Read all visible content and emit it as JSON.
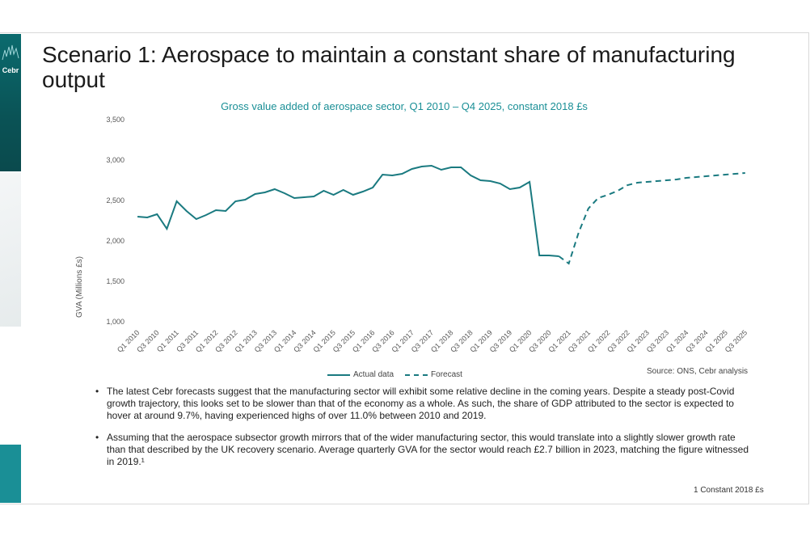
{
  "slide": {
    "title": "Scenario 1: Aerospace to maintain a constant share of manufacturing output",
    "logo_text": "Cebr",
    "source": "Source: ONS, Cebr analysis",
    "footnote": "1 Constant 2018 £s",
    "bullets": [
      "The latest Cebr forecasts suggest that the manufacturing sector will exhibit some relative decline in the coming years. Despite a steady post-Covid growth trajectory, this looks set to be slower than that of the economy as a whole. As such, the share of GDP attributed to the sector is expected to hover at around 9.7%, having experienced highs of over 11.0% between 2010 and 2019.",
      "Assuming that the aerospace subsector growth mirrors that of the wider manufacturing sector, this would translate into a slightly slower growth rate than that described by the UK recovery scenario. Average quarterly GVA for the sector would reach £2.7 billion in 2023, matching the figure witnessed in 2019.¹"
    ]
  },
  "chart_data": {
    "type": "line",
    "title": "Gross value added of aerospace sector, Q1 2010 – Q4 2025, constant 2018 £s",
    "ylabel": "GVA (Millions £s)",
    "xlabel": "",
    "ylim": [
      1000,
      3500
    ],
    "yticks": [
      "1,000",
      "1,500",
      "2,000",
      "2,500",
      "3,000",
      "3,500"
    ],
    "grid": false,
    "legend_position": "bottom",
    "colors": {
      "series": "#1a7a80"
    },
    "x_tick_labels": [
      "Q1 2010",
      "Q3 2010",
      "Q1 2011",
      "Q3 2011",
      "Q1 2012",
      "Q3 2012",
      "Q1 2013",
      "Q3 2013",
      "Q1 2014",
      "Q3 2014",
      "Q1 2015",
      "Q3 2015",
      "Q1 2016",
      "Q3 2016",
      "Q1 2017",
      "Q3 2017",
      "Q1 2018",
      "Q3 2018",
      "Q1 2019",
      "Q3 2019",
      "Q1 2020",
      "Q3 2020",
      "Q1 2021",
      "Q3 2021",
      "Q1 2022",
      "Q3 2022",
      "Q1 2023",
      "Q3 2023",
      "Q1 2024",
      "Q3 2024",
      "Q1 2025",
      "Q3 2025"
    ],
    "series": [
      {
        "name": "Actual data",
        "style": "solid",
        "start_quarter": "Q1 2010",
        "values": [
          2300,
          2290,
          2330,
          2150,
          2490,
          2370,
          2270,
          2320,
          2380,
          2370,
          2490,
          2510,
          2580,
          2600,
          2640,
          2590,
          2530,
          2540,
          2550,
          2620,
          2570,
          2630,
          2570,
          2610,
          2660,
          2820,
          2810,
          2830,
          2890,
          2920,
          2930,
          2880,
          2910,
          2910,
          2810,
          2750,
          2740,
          2710,
          2640,
          2660,
          2730,
          1820,
          1820,
          1810
        ]
      },
      {
        "name": "Forecast",
        "style": "dashed",
        "start_quarter": "Q4 2020",
        "values": [
          1810,
          1720,
          2100,
          2400,
          2530,
          2570,
          2620,
          2690,
          2720,
          2730,
          2740,
          2750,
          2760,
          2780,
          2790,
          2800,
          2810,
          2820,
          2830,
          2840
        ]
      }
    ]
  }
}
